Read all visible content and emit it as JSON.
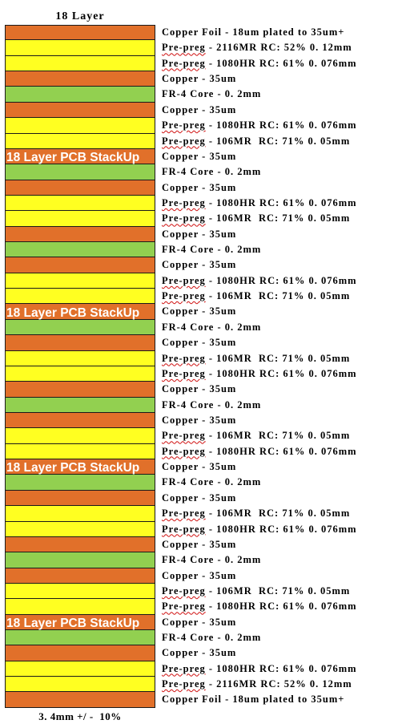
{
  "title": "18 Layer",
  "footer": "3. 4mm +/ -  10%",
  "overlay_text": "18 Layer PCB StackUp",
  "colors": {
    "copper": "#e1702a",
    "prepreg": "#ffff21",
    "core": "#92d050"
  },
  "layers": [
    {
      "type": "copper",
      "label": "Copper Foil - 18um plated to 35um+"
    },
    {
      "type": "prepreg",
      "pp": "Pre-preg",
      "rest": " - 2116MR RC: 52% 0. 12mm"
    },
    {
      "type": "prepreg",
      "pp": "Pre-preg",
      "rest": " - 1080HR RC: 61% 0. 076mm"
    },
    {
      "type": "copper",
      "label": "Copper - 35um"
    },
    {
      "type": "core",
      "label": "FR-4 Core - 0. 2mm"
    },
    {
      "type": "copper",
      "label": "Copper - 35um"
    },
    {
      "type": "prepreg",
      "pp": "Pre-preg",
      "rest": " - 1080HR RC: 61% 0. 076mm"
    },
    {
      "type": "prepreg",
      "pp": "Pre-preg",
      "rest": " - 106MR  RC: 71% 0. 05mm"
    },
    {
      "type": "copper",
      "label": "Copper - 35um"
    },
    {
      "type": "core",
      "label": "FR-4 Core - 0. 2mm"
    },
    {
      "type": "copper",
      "label": "Copper - 35um"
    },
    {
      "type": "prepreg",
      "pp": "Pre-preg",
      "rest": " - 1080HR RC: 61% 0. 076mm"
    },
    {
      "type": "prepreg",
      "pp": "Pre-preg",
      "rest": " - 106MR  RC: 71% 0. 05mm"
    },
    {
      "type": "copper",
      "label": "Copper - 35um"
    },
    {
      "type": "core",
      "label": "FR-4 Core - 0. 2mm"
    },
    {
      "type": "copper",
      "label": "Copper - 35um"
    },
    {
      "type": "prepreg",
      "pp": "Pre-preg",
      "rest": " - 1080HR RC: 61% 0. 076mm"
    },
    {
      "type": "prepreg",
      "pp": "Pre-preg",
      "rest": " - 106MR  RC: 71% 0. 05mm"
    },
    {
      "type": "copper",
      "label": "Copper - 35um"
    },
    {
      "type": "core",
      "label": "FR-4 Core - 0. 2mm"
    },
    {
      "type": "copper",
      "label": "Copper - 35um"
    },
    {
      "type": "prepreg",
      "pp": "Pre-preg",
      "rest": " - 106MR  RC: 71% 0. 05mm"
    },
    {
      "type": "prepreg",
      "pp": "Pre-preg",
      "rest": " - 1080HR RC: 61% 0. 076mm"
    },
    {
      "type": "copper",
      "label": "Copper - 35um"
    },
    {
      "type": "core",
      "label": "FR-4 Core - 0. 2mm"
    },
    {
      "type": "copper",
      "label": "Copper - 35um"
    },
    {
      "type": "prepreg",
      "pp": "Pre-preg",
      "rest": " - 106MR  RC: 71% 0. 05mm"
    },
    {
      "type": "prepreg",
      "pp": "Pre-preg",
      "rest": " - 1080HR RC: 61% 0. 076mm"
    },
    {
      "type": "copper",
      "label": "Copper - 35um"
    },
    {
      "type": "core",
      "label": "FR-4 Core - 0. 2mm"
    },
    {
      "type": "copper",
      "label": "Copper - 35um"
    },
    {
      "type": "prepreg",
      "pp": "Pre-preg",
      "rest": " - 106MR  RC: 71% 0. 05mm"
    },
    {
      "type": "prepreg",
      "pp": "Pre-preg",
      "rest": " - 1080HR RC: 61% 0. 076mm"
    },
    {
      "type": "copper",
      "label": "Copper - 35um"
    },
    {
      "type": "core",
      "label": "FR-4 Core - 0. 2mm"
    },
    {
      "type": "copper",
      "label": "Copper - 35um"
    },
    {
      "type": "prepreg",
      "pp": "Pre-preg",
      "rest": " - 106MR  RC: 71% 0. 05mm"
    },
    {
      "type": "prepreg",
      "pp": "Pre-preg",
      "rest": " - 1080HR RC: 61% 0. 076mm"
    },
    {
      "type": "copper",
      "label": "Copper - 35um"
    },
    {
      "type": "core",
      "label": "FR-4 Core - 0. 2mm"
    },
    {
      "type": "copper",
      "label": "Copper - 35um"
    },
    {
      "type": "prepreg",
      "pp": "Pre-preg",
      "rest": " - 1080HR RC: 61% 0. 076mm"
    },
    {
      "type": "prepreg",
      "pp": "Pre-preg",
      "rest": " - 2116MR RC: 52% 0. 12mm"
    },
    {
      "type": "copper",
      "label": "Copper Foil - 18um plated to 35um+"
    }
  ]
}
